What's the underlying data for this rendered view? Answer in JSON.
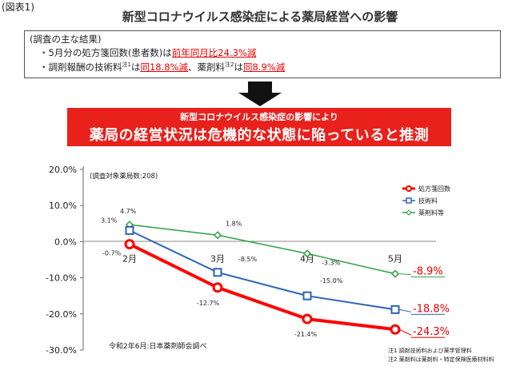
{
  "figure_label": "(図表1)",
  "title": "新型コロナウイルス感染症による薬局経営への影響",
  "findings": {
    "heading": "(調査の主な結果)",
    "line1_prefix": "・5月分の処方箋回数(患者数)は",
    "line1_red": "前年同月比24.3%減",
    "line2_a": "・調剤報酬の技術料",
    "line2_note": "注1",
    "line2_b": "は",
    "line2_red1": "同18.8%減",
    "line2_c": "、薬剤料",
    "line2_note2": "注2",
    "line2_d": "は",
    "line2_red2": "同8.9%減"
  },
  "banner": {
    "sub": "新型コロナウイルス感染症の影響により",
    "main": "薬局の経営状況は危機的な状態に陥っていると推測"
  },
  "chart_data": {
    "type": "line",
    "categories": [
      "2月",
      "3月",
      "4月",
      "5月"
    ],
    "sample_note": "(調査対象薬局数:208)",
    "ylim": [
      -30,
      20
    ],
    "yticks": [
      "20.0%",
      "10.0%",
      "0.0%",
      "-10.0%",
      "-20.0%",
      "-30.0%"
    ],
    "ytick_values": [
      20,
      10,
      0,
      -10,
      -20,
      -30
    ],
    "legend_position": "top-right",
    "series": [
      {
        "name": "処方箋回数",
        "color": "#ff0000",
        "marker": "circle",
        "values": [
          -0.7,
          -12.7,
          -21.4,
          -24.3
        ],
        "labels": [
          "-0.7%",
          "-12.7%",
          "-21.4%",
          "-24.3%"
        ]
      },
      {
        "name": "技術料",
        "color": "#2e64b4",
        "marker": "square",
        "values": [
          3.1,
          -8.5,
          -15.0,
          -18.8
        ],
        "labels": [
          "3.1%",
          "-8.5%",
          "-15.0%",
          "-18.8%"
        ]
      },
      {
        "name": "薬剤料等",
        "color": "#2ea043",
        "marker": "diamond",
        "values": [
          4.7,
          1.8,
          -3.3,
          -8.9
        ],
        "labels": [
          "4.7%",
          "1.8%",
          "-3.3%",
          "-8.9%"
        ]
      }
    ],
    "source": "令和2年6月:日本薬剤師会調べ",
    "notes": [
      "注1 調剤技術料および薬学管理料",
      "注2 薬剤料は薬剤料・特定保険医療材料料"
    ]
  }
}
